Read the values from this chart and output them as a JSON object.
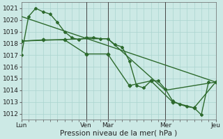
{
  "background_color": "#cce9e5",
  "grid_color": "#aad4cf",
  "line_color": "#2d6a2d",
  "title": "Pression niveau de la mer( hPa )",
  "ylim": [
    1011.5,
    1021.5
  ],
  "yticks": [
    1012,
    1013,
    1014,
    1015,
    1016,
    1017,
    1018,
    1019,
    1020,
    1021
  ],
  "xtick_labels": [
    "Lun",
    "Ven",
    "Mar",
    "Mer",
    "Jeu"
  ],
  "xtick_positions": [
    0,
    9,
    12,
    20,
    27
  ],
  "series": [
    {
      "x": [
        0,
        1,
        2,
        3,
        4,
        5,
        6,
        7,
        8,
        9,
        10,
        11,
        12,
        13,
        14,
        15,
        16,
        17,
        18,
        19,
        20,
        21,
        22,
        23,
        24,
        25,
        26
      ],
      "y": [
        1017.0,
        1020.3,
        1021.0,
        1020.7,
        1020.5,
        1019.8,
        1019.0,
        1018.5,
        1018.3,
        1018.5,
        1018.5,
        1018.4,
        1018.4,
        1017.9,
        1017.7,
        1016.5,
        1014.4,
        1014.2,
        1014.8,
        1014.8,
        1014.1,
        1013.1,
        1012.8,
        1012.6,
        1012.5,
        1011.9,
        1014.7
      ],
      "marker": "D",
      "markersize": 2.0,
      "linewidth": 1.0
    },
    {
      "x": [
        0,
        3,
        6,
        9,
        12,
        15,
        18,
        21,
        24,
        27
      ],
      "y": [
        1018.2,
        1018.3,
        1018.3,
        1017.1,
        1017.1,
        1014.4,
        1014.8,
        1013.0,
        1012.5,
        1014.7
      ],
      "marker": "D",
      "markersize": 2.5,
      "linewidth": 1.0
    },
    {
      "x": [
        0,
        27
      ],
      "y": [
        1020.3,
        1014.7
      ],
      "marker": null,
      "markersize": 0,
      "linewidth": 1.0
    },
    {
      "x": [
        0,
        9,
        12,
        20,
        27
      ],
      "y": [
        1018.2,
        1018.4,
        1018.4,
        1014.0,
        1014.7
      ],
      "marker": null,
      "markersize": 0,
      "linewidth": 1.0
    }
  ],
  "vlines": [
    9,
    12,
    20,
    27
  ],
  "vline_color": "#444444",
  "fontsize_ticks": 6.5,
  "fontsize_xlabel": 7.5
}
